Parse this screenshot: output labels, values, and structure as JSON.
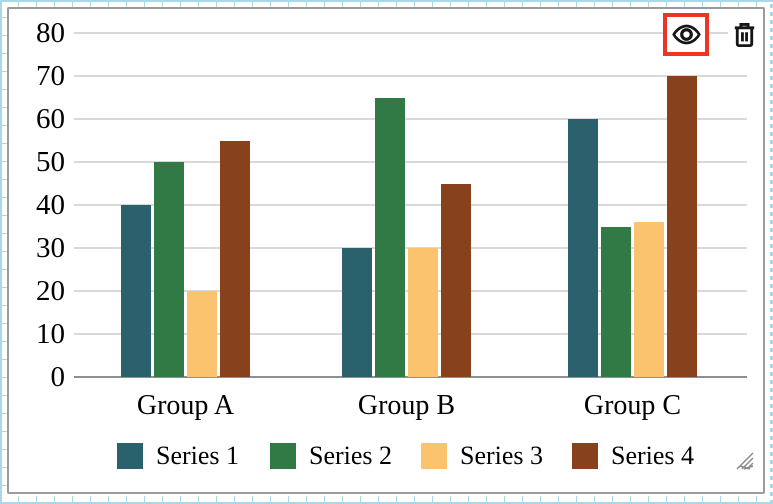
{
  "chart_data": {
    "type": "bar",
    "title": "",
    "xlabel": "",
    "ylabel": "",
    "categories": [
      "Group A",
      "Group B",
      "Group C"
    ],
    "series": [
      {
        "name": "Series 1",
        "color": "#2a616c",
        "values": [
          40,
          30,
          60
        ]
      },
      {
        "name": "Series 2",
        "color": "#317a45",
        "values": [
          50,
          65,
          35
        ]
      },
      {
        "name": "Series 3",
        "color": "#fbc36e",
        "values": [
          20,
          30,
          36
        ]
      },
      {
        "name": "Series 4",
        "color": "#87421d",
        "values": [
          55,
          45,
          70
        ]
      }
    ],
    "ylim": [
      0,
      80
    ],
    "yticks": [
      0,
      10,
      20,
      30,
      40,
      50,
      60,
      70,
      80
    ],
    "grid": true,
    "legend_position": "bottom"
  },
  "toolbar": {
    "visibility_button": {
      "icon": "eye-icon",
      "highlighted": true
    },
    "delete_button": {
      "icon": "trash-icon"
    }
  },
  "widget": {
    "resize_handle_icon": "resize-grip-icon"
  },
  "colors": {
    "highlight_red": "#ee3524",
    "grid_line": "#d9d9d9",
    "axis_line": "#8f8f8f",
    "container_border": "#9b9b9b",
    "guide_blue": "#a9d8e6",
    "icon_black": "#161616",
    "text": "#000000"
  }
}
